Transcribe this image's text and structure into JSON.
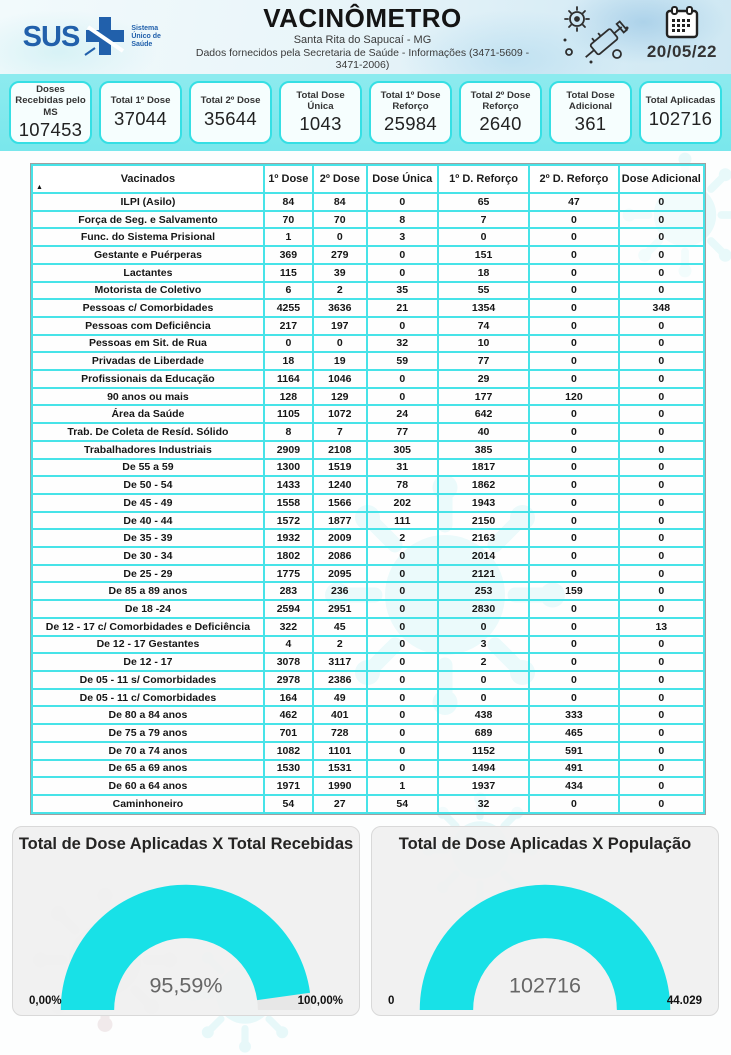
{
  "header": {
    "logo": {
      "text": "SUS",
      "subtitle": "Sistema Único de Saúde"
    },
    "title": "VACINÔMETRO",
    "subtitle1": "Santa Rita do Sapucaí - MG",
    "subtitle2": "Dados fornecidos pela Secretaria de Saúde - Informações (3471-5609 - 3471-2006)",
    "date": "20/05/22",
    "icons": [
      "virus-icon",
      "syringe-icon",
      "calendar-icon"
    ]
  },
  "summary": {
    "cards": [
      {
        "label": "Doses Recebidas pelo MS",
        "value": "107453"
      },
      {
        "label": "Total 1º Dose",
        "value": "37044"
      },
      {
        "label": "Total 2º Dose",
        "value": "35644"
      },
      {
        "label": "Total Dose Única",
        "value": "1043"
      },
      {
        "label": "Total 1º Dose Reforço",
        "value": "25984"
      },
      {
        "label": "Total 2º Dose Reforço",
        "value": "2640"
      },
      {
        "label": "Total Dose Adicional",
        "value": "361"
      },
      {
        "label": "Total Aplicadas",
        "value": "102716"
      }
    ]
  },
  "table": {
    "sort_indicator": "▲",
    "columns": [
      "Vacinados",
      "1º Dose",
      "2º Dose",
      "Dose Única",
      "1º D. Reforço",
      "2º D. Reforço",
      "Dose Adicional"
    ],
    "rows": [
      {
        "label": "ILPI (Asilo)",
        "values": [
          84,
          84,
          0,
          65,
          47,
          0
        ]
      },
      {
        "label": "Força de Seg. e Salvamento",
        "values": [
          70,
          70,
          8,
          7,
          0,
          0
        ]
      },
      {
        "label": "Func. do Sistema Prisional",
        "values": [
          1,
          0,
          3,
          0,
          0,
          0
        ]
      },
      {
        "label": "Gestante e Puérperas",
        "values": [
          369,
          279,
          0,
          151,
          0,
          0
        ]
      },
      {
        "label": "Lactantes",
        "values": [
          115,
          39,
          0,
          18,
          0,
          0
        ]
      },
      {
        "label": "Motorista de Coletivo",
        "values": [
          6,
          2,
          35,
          55,
          0,
          0
        ]
      },
      {
        "label": "Pessoas c/ Comorbidades",
        "values": [
          4255,
          3636,
          21,
          1354,
          0,
          348
        ]
      },
      {
        "label": "Pessoas com Deficiência",
        "values": [
          217,
          197,
          0,
          74,
          0,
          0
        ]
      },
      {
        "label": "Pessoas em Sit. de Rua",
        "values": [
          0,
          0,
          32,
          10,
          0,
          0
        ]
      },
      {
        "label": "Privadas de Liberdade",
        "values": [
          18,
          19,
          59,
          77,
          0,
          0
        ]
      },
      {
        "label": "Profissionais da Educação",
        "values": [
          1164,
          1046,
          0,
          29,
          0,
          0
        ]
      },
      {
        "label": "90 anos ou mais",
        "values": [
          128,
          129,
          0,
          177,
          120,
          0
        ]
      },
      {
        "label": "Área da Saúde",
        "values": [
          1105,
          1072,
          24,
          642,
          0,
          0
        ]
      },
      {
        "label": "Trab. De Coleta de Resíd. Sólido",
        "values": [
          8,
          7,
          77,
          40,
          0,
          0
        ]
      },
      {
        "label": "Trabalhadores Industriais",
        "values": [
          2909,
          2108,
          305,
          385,
          0,
          0
        ]
      },
      {
        "label": "De 55 a 59",
        "values": [
          1300,
          1519,
          31,
          1817,
          0,
          0
        ]
      },
      {
        "label": "De 50 - 54",
        "values": [
          1433,
          1240,
          78,
          1862,
          0,
          0
        ]
      },
      {
        "label": "De 45 - 49",
        "values": [
          1558,
          1566,
          202,
          1943,
          0,
          0
        ]
      },
      {
        "label": "De 40 - 44",
        "values": [
          1572,
          1877,
          111,
          2150,
          0,
          0
        ]
      },
      {
        "label": "De 35 - 39",
        "values": [
          1932,
          2009,
          2,
          2163,
          0,
          0
        ]
      },
      {
        "label": "De 30 - 34",
        "values": [
          1802,
          2086,
          0,
          2014,
          0,
          0
        ]
      },
      {
        "label": "De 25 - 29",
        "values": [
          1775,
          2095,
          0,
          2121,
          0,
          0
        ]
      },
      {
        "label": "De 85 a 89 anos",
        "values": [
          283,
          236,
          0,
          253,
          159,
          0
        ]
      },
      {
        "label": "De 18 -24",
        "values": [
          2594,
          2951,
          0,
          2830,
          0,
          0
        ]
      },
      {
        "label": "De 12 - 17 c/ Comorbidades e Deficiência",
        "values": [
          322,
          45,
          0,
          0,
          0,
          13
        ]
      },
      {
        "label": "De 12 - 17 Gestantes",
        "values": [
          4,
          2,
          0,
          3,
          0,
          0
        ]
      },
      {
        "label": "De 12 - 17",
        "values": [
          3078,
          3117,
          0,
          2,
          0,
          0
        ]
      },
      {
        "label": "De 05 - 11 s/ Comorbidades",
        "values": [
          2978,
          2386,
          0,
          0,
          0,
          0
        ]
      },
      {
        "label": "De 05 - 11 c/ Comorbidades",
        "values": [
          164,
          49,
          0,
          0,
          0,
          0
        ]
      },
      {
        "label": "De 80 a 84 anos",
        "values": [
          462,
          401,
          0,
          438,
          333,
          0
        ]
      },
      {
        "label": "De 75 a 79 anos",
        "values": [
          701,
          728,
          0,
          689,
          465,
          0
        ]
      },
      {
        "label": "De 70 a 74 anos",
        "values": [
          1082,
          1101,
          0,
          1152,
          591,
          0
        ]
      },
      {
        "label": "De 65 a 69 anos",
        "values": [
          1530,
          1531,
          0,
          1494,
          491,
          0
        ]
      },
      {
        "label": "De 60 a 64 anos",
        "values": [
          1971,
          1990,
          1,
          1937,
          434,
          0
        ]
      },
      {
        "label": "Caminhoneiro",
        "values": [
          54,
          27,
          54,
          32,
          0,
          0
        ]
      }
    ]
  },
  "chart_data": [
    {
      "type": "gauge",
      "title": "Total de Dose Aplicadas X Total Recebidas",
      "value": 95.59,
      "value_label": "95,59%",
      "min": 0,
      "max": 100,
      "min_label": "0,00%",
      "max_label": "100,00%",
      "fill_fraction": 0.9559,
      "fill_color": "#18e1e7"
    },
    {
      "type": "gauge",
      "title": "Total de Dose Aplicadas X População",
      "value": 102716,
      "value_label": "102716",
      "min": 0,
      "max": 44029,
      "min_label": "0",
      "max_label": "44.029",
      "fill_fraction": 1.0,
      "fill_color": "#18e1e7"
    }
  ],
  "colors": {
    "accent_cyan": "#35dfe4",
    "band_background": "#82e9ee",
    "sus_blue": "#2160ab",
    "gauge_fill": "#18e1e7",
    "gauge_card_bg": "#f0f0f0"
  }
}
